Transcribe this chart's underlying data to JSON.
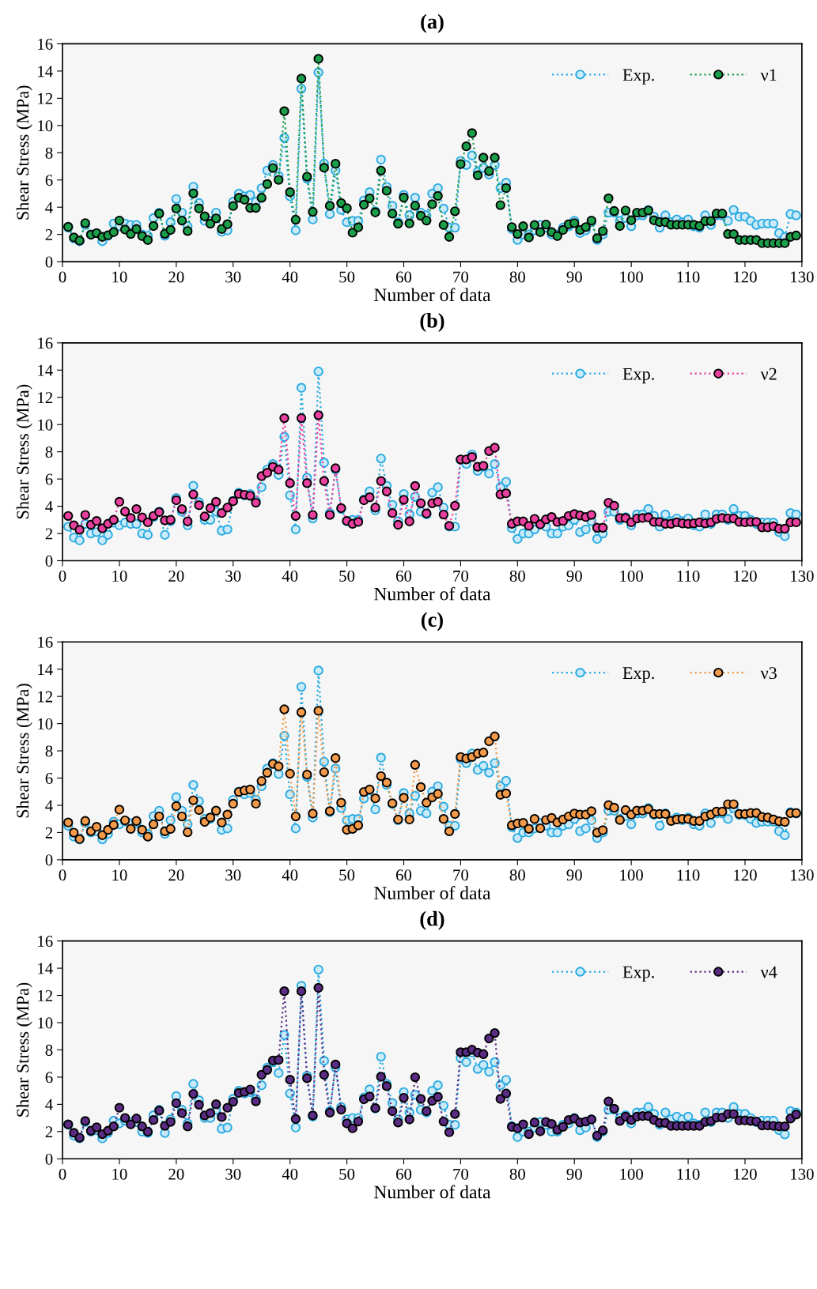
{
  "chart_data": [
    {
      "type": "line",
      "title": "(a)",
      "xlabel": "Number of data",
      "ylabel": "Shear Stress (MPa)",
      "xlim": [
        0,
        130
      ],
      "xticks": [
        0,
        10,
        20,
        30,
        40,
        50,
        60,
        70,
        80,
        90,
        100,
        110,
        120,
        130
      ],
      "ylim": [
        0,
        16
      ],
      "yticks": [
        0,
        2,
        4,
        6,
        8,
        10,
        12,
        14,
        16
      ],
      "grid": false,
      "legend": "top right",
      "marker": "circle",
      "line_style": "dotted",
      "x": [
        1,
        2,
        3,
        4,
        5,
        6,
        7,
        8,
        9,
        10,
        11,
        12,
        13,
        14,
        15,
        16,
        17,
        18,
        19,
        20,
        21,
        22,
        23,
        24,
        25,
        26,
        27,
        28,
        29,
        30,
        31,
        32,
        33,
        34,
        35,
        36,
        37,
        38,
        39,
        40,
        41,
        42,
        43,
        44,
        45,
        46,
        47,
        48,
        49,
        50,
        51,
        52,
        53,
        54,
        55,
        56,
        57,
        58,
        59,
        60,
        61,
        62,
        63,
        64,
        65,
        66,
        67,
        68,
        69,
        70,
        71,
        72,
        73,
        74,
        75,
        76,
        77,
        78,
        79,
        80,
        81,
        82,
        83,
        84,
        85,
        86,
        87,
        88,
        89,
        90,
        91,
        92,
        93,
        94,
        95,
        96,
        97,
        98,
        99,
        100,
        101,
        102,
        103,
        104,
        105,
        106,
        107,
        108,
        109,
        110,
        111,
        112,
        113,
        114,
        115,
        116,
        117,
        118,
        119,
        120,
        121,
        122,
        123,
        124,
        125,
        126,
        127,
        128,
        129
      ],
      "series": [
        {
          "name": "Exp.",
          "color": "#29abe2",
          "values": [
            2.5,
            1.7,
            1.5,
            2.7,
            2.0,
            2.1,
            1.5,
            1.9,
            2.8,
            2.6,
            2.8,
            2.7,
            2.7,
            2.0,
            1.9,
            3.2,
            3.6,
            1.9,
            2.9,
            4.6,
            3.6,
            2.6,
            5.5,
            4.3,
            3.0,
            3.0,
            3.6,
            2.2,
            2.3,
            4.4,
            5.0,
            4.8,
            4.9,
            4.4,
            5.4,
            6.7,
            7.1,
            6.3,
            9.1,
            4.8,
            2.3,
            12.7,
            6.1,
            3.1,
            13.9,
            7.2,
            3.5,
            6.7,
            3.8,
            2.9,
            3.0,
            3.0,
            4.5,
            5.1,
            3.7,
            7.5,
            5.5,
            4.1,
            2.9,
            4.9,
            3.4,
            4.7,
            3.6,
            3.4,
            5.0,
            5.4,
            3.9,
            2.5,
            2.5,
            7.4,
            7.1,
            7.8,
            6.6,
            6.9,
            6.4,
            7.1,
            5.4,
            5.8,
            2.4,
            1.6,
            2.0,
            2.0,
            2.3,
            2.7,
            2.5,
            2.0,
            2.0,
            2.5,
            2.6,
            3.0,
            2.1,
            2.3,
            2.9,
            1.6,
            2.0,
            3.6,
            3.6,
            3.0,
            3.2,
            2.6,
            3.4,
            3.4,
            3.8,
            3.3,
            2.5,
            3.4,
            2.9,
            3.1,
            2.9,
            3.1,
            2.6,
            2.5,
            3.4,
            2.7,
            3.4,
            3.4,
            3.0,
            3.8,
            3.3,
            3.3,
            3.0,
            2.7,
            2.8,
            2.8,
            2.8,
            2.1,
            1.8,
            3.5,
            3.4
          ]
        },
        {
          "name": "ν1",
          "color": "#1a9e4a",
          "values": [
            2.56,
            1.78,
            1.55,
            2.83,
            1.98,
            2.09,
            1.82,
            1.94,
            2.17,
            3.02,
            2.36,
            2.03,
            2.4,
            1.88,
            1.59,
            2.62,
            3.53,
            2.05,
            2.33,
            3.9,
            3.02,
            2.25,
            5.02,
            3.91,
            3.33,
            2.79,
            3.18,
            2.4,
            2.75,
            4.09,
            4.69,
            4.55,
            3.95,
            3.95,
            4.69,
            5.7,
            6.88,
            6.01,
            11.05,
            5.1,
            3.08,
            13.45,
            6.24,
            3.66,
            14.9,
            6.9,
            4.1,
            7.19,
            4.3,
            3.93,
            2.13,
            2.52,
            4.19,
            4.65,
            3.62,
            6.69,
            5.21,
            3.53,
            2.79,
            4.71,
            2.81,
            4.11,
            3.37,
            3.02,
            4.22,
            4.83,
            2.69,
            1.82,
            3.7,
            7.17,
            8.47,
            9.44,
            6.34,
            7.64,
            6.65,
            7.64,
            4.15,
            5.41,
            2.54,
            2.03,
            2.6,
            1.78,
            2.69,
            2.17,
            2.73,
            2.17,
            1.88,
            2.33,
            2.75,
            2.83,
            2.33,
            2.54,
            3.02,
            1.72,
            2.25,
            4.65,
            3.72,
            2.62,
            3.76,
            3.04,
            3.6,
            3.6,
            3.76,
            3.04,
            2.91,
            2.91,
            2.71,
            2.71,
            2.71,
            2.71,
            2.71,
            2.62,
            2.98,
            2.98,
            3.53,
            3.53,
            2.03,
            2.03,
            1.59,
            1.59,
            1.59,
            1.59,
            1.36,
            1.36,
            1.36,
            1.36,
            1.36,
            1.82,
            1.92
          ]
        }
      ]
    },
    {
      "type": "line",
      "title": "(b)",
      "xlabel": "Number of data",
      "ylabel": "Shear Stress (MPa)",
      "xlim": [
        0,
        130
      ],
      "xticks": [
        0,
        10,
        20,
        30,
        40,
        50,
        60,
        70,
        80,
        90,
        100,
        110,
        120,
        130
      ],
      "ylim": [
        0,
        16
      ],
      "yticks": [
        0,
        2,
        4,
        6,
        8,
        10,
        12,
        14,
        16
      ],
      "grid": false,
      "legend": "top right",
      "marker": "circle",
      "line_style": "dotted",
      "x": [
        1,
        2,
        3,
        4,
        5,
        6,
        7,
        8,
        9,
        10,
        11,
        12,
        13,
        14,
        15,
        16,
        17,
        18,
        19,
        20,
        21,
        22,
        23,
        24,
        25,
        26,
        27,
        28,
        29,
        30,
        31,
        32,
        33,
        34,
        35,
        36,
        37,
        38,
        39,
        40,
        41,
        42,
        43,
        44,
        45,
        46,
        47,
        48,
        49,
        50,
        51,
        52,
        53,
        54,
        55,
        56,
        57,
        58,
        59,
        60,
        61,
        62,
        63,
        64,
        65,
        66,
        67,
        68,
        69,
        70,
        71,
        72,
        73,
        74,
        75,
        76,
        77,
        78,
        79,
        80,
        81,
        82,
        83,
        84,
        85,
        86,
        87,
        88,
        89,
        90,
        91,
        92,
        93,
        94,
        95,
        96,
        97,
        98,
        99,
        100,
        101,
        102,
        103,
        104,
        105,
        106,
        107,
        108,
        109,
        110,
        111,
        112,
        113,
        114,
        115,
        116,
        117,
        118,
        119,
        120,
        121,
        122,
        123,
        124,
        125,
        126,
        127,
        128,
        129
      ],
      "series": [
        {
          "name": "Exp.",
          "color": "#29abe2",
          "values": [
            2.5,
            1.7,
            1.5,
            2.7,
            2.0,
            2.1,
            1.5,
            1.9,
            2.8,
            2.6,
            2.8,
            2.7,
            2.7,
            2.0,
            1.9,
            3.2,
            3.6,
            1.9,
            2.9,
            4.6,
            3.6,
            2.6,
            5.5,
            4.3,
            3.0,
            3.0,
            3.6,
            2.2,
            2.3,
            4.4,
            5.0,
            4.8,
            4.9,
            4.4,
            5.4,
            6.7,
            7.1,
            6.3,
            9.1,
            4.8,
            2.3,
            12.7,
            6.1,
            3.1,
            13.9,
            7.2,
            3.5,
            6.7,
            3.8,
            2.9,
            3.0,
            3.0,
            4.5,
            5.1,
            3.7,
            7.5,
            5.5,
            4.1,
            2.9,
            4.9,
            3.4,
            4.7,
            3.6,
            3.4,
            5.0,
            5.4,
            3.9,
            2.5,
            2.5,
            7.4,
            7.1,
            7.8,
            6.6,
            6.9,
            6.4,
            7.1,
            5.4,
            5.8,
            2.4,
            1.6,
            2.0,
            2.0,
            2.3,
            2.7,
            2.5,
            2.0,
            2.0,
            2.5,
            2.6,
            3.0,
            2.1,
            2.3,
            2.9,
            1.6,
            2.0,
            3.6,
            3.6,
            3.0,
            3.2,
            2.6,
            3.4,
            3.4,
            3.8,
            3.3,
            2.5,
            3.4,
            2.9,
            3.1,
            2.9,
            3.1,
            2.6,
            2.5,
            3.4,
            2.7,
            3.4,
            3.4,
            3.0,
            3.8,
            3.3,
            3.3,
            3.0,
            2.7,
            2.8,
            2.8,
            2.8,
            2.1,
            1.8,
            3.5,
            3.4
          ]
        },
        {
          "name": "ν2",
          "color": "#e8409f",
          "values": [
            3.29,
            2.6,
            2.27,
            3.36,
            2.64,
            2.92,
            2.38,
            2.71,
            3.0,
            4.33,
            3.61,
            3.14,
            3.79,
            3.18,
            2.82,
            3.29,
            3.57,
            2.96,
            3.0,
            4.44,
            3.79,
            2.89,
            4.87,
            4.08,
            3.25,
            3.86,
            4.33,
            3.5,
            3.9,
            4.37,
            4.91,
            4.84,
            4.77,
            4.26,
            6.21,
            6.46,
            6.9,
            6.68,
            10.47,
            5.7,
            3.29,
            10.47,
            5.7,
            3.36,
            10.69,
            5.85,
            3.36,
            6.79,
            3.86,
            2.92,
            2.71,
            2.85,
            4.44,
            4.66,
            3.9,
            5.85,
            5.09,
            3.5,
            2.64,
            4.48,
            2.89,
            5.49,
            4.22,
            3.47,
            4.22,
            4.33,
            3.39,
            2.56,
            4.04,
            7.44,
            7.44,
            7.62,
            6.9,
            6.97,
            8.05,
            8.3,
            4.87,
            4.95,
            2.71,
            2.89,
            2.89,
            2.56,
            3.07,
            2.67,
            3.03,
            3.21,
            2.85,
            2.92,
            3.29,
            3.43,
            3.32,
            3.21,
            3.36,
            2.42,
            2.42,
            4.26,
            4.04,
            3.14,
            3.14,
            2.82,
            3.1,
            3.14,
            3.18,
            2.85,
            2.85,
            2.71,
            2.71,
            2.82,
            2.74,
            2.71,
            2.74,
            2.82,
            2.74,
            2.82,
            3.07,
            3.14,
            3.1,
            3.1,
            2.85,
            2.82,
            2.85,
            2.85,
            2.45,
            2.45,
            2.53,
            2.35,
            2.35,
            2.82,
            2.82
          ]
        }
      ]
    },
    {
      "type": "line",
      "title": "(c)",
      "xlabel": "Number of data",
      "ylabel": "Shear Stress (MPa)",
      "xlim": [
        0,
        130
      ],
      "xticks": [
        0,
        10,
        20,
        30,
        40,
        50,
        60,
        70,
        80,
        90,
        100,
        110,
        120,
        130
      ],
      "ylim": [
        0,
        16
      ],
      "yticks": [
        0,
        2,
        4,
        6,
        8,
        10,
        12,
        14,
        16
      ],
      "grid": false,
      "legend": "top right",
      "marker": "circle",
      "line_style": "dotted",
      "x": [
        1,
        2,
        3,
        4,
        5,
        6,
        7,
        8,
        9,
        10,
        11,
        12,
        13,
        14,
        15,
        16,
        17,
        18,
        19,
        20,
        21,
        22,
        23,
        24,
        25,
        26,
        27,
        28,
        29,
        30,
        31,
        32,
        33,
        34,
        35,
        36,
        37,
        38,
        39,
        40,
        41,
        42,
        43,
        44,
        45,
        46,
        47,
        48,
        49,
        50,
        51,
        52,
        53,
        54,
        55,
        56,
        57,
        58,
        59,
        60,
        61,
        62,
        63,
        64,
        65,
        66,
        67,
        68,
        69,
        70,
        71,
        72,
        73,
        74,
        75,
        76,
        77,
        78,
        79,
        80,
        81,
        82,
        83,
        84,
        85,
        86,
        87,
        88,
        89,
        90,
        91,
        92,
        93,
        94,
        95,
        96,
        97,
        98,
        99,
        100,
        101,
        102,
        103,
        104,
        105,
        106,
        107,
        108,
        109,
        110,
        111,
        112,
        113,
        114,
        115,
        116,
        117,
        118,
        119,
        120,
        121,
        122,
        123,
        124,
        125,
        126,
        127,
        128,
        129
      ],
      "series": [
        {
          "name": "Exp.",
          "color": "#29abe2",
          "values": [
            2.5,
            1.7,
            1.5,
            2.7,
            2.0,
            2.1,
            1.5,
            1.9,
            2.8,
            2.6,
            2.8,
            2.7,
            2.7,
            2.0,
            1.9,
            3.2,
            3.6,
            1.9,
            2.9,
            4.6,
            3.6,
            2.6,
            5.5,
            4.3,
            3.0,
            3.0,
            3.6,
            2.2,
            2.3,
            4.4,
            5.0,
            4.8,
            4.9,
            4.4,
            5.4,
            6.7,
            7.1,
            6.3,
            9.1,
            4.8,
            2.3,
            12.7,
            6.1,
            3.1,
            13.9,
            7.2,
            3.5,
            6.7,
            3.8,
            2.9,
            3.0,
            3.0,
            4.5,
            5.1,
            3.7,
            7.5,
            5.5,
            4.1,
            2.9,
            4.9,
            3.4,
            4.7,
            3.6,
            3.4,
            5.0,
            5.4,
            3.9,
            2.5,
            2.5,
            7.4,
            7.1,
            7.8,
            6.6,
            6.9,
            6.4,
            7.1,
            5.4,
            5.8,
            2.4,
            1.6,
            2.0,
            2.0,
            2.3,
            2.7,
            2.5,
            2.0,
            2.0,
            2.5,
            2.6,
            3.0,
            2.1,
            2.3,
            2.9,
            1.6,
            2.0,
            3.6,
            3.6,
            3.0,
            3.2,
            2.6,
            3.4,
            3.4,
            3.8,
            3.3,
            2.5,
            3.4,
            2.9,
            3.1,
            2.9,
            3.1,
            2.6,
            2.5,
            3.4,
            2.7,
            3.4,
            3.4,
            3.0,
            3.8,
            3.3,
            3.3,
            3.0,
            2.7,
            2.8,
            2.8,
            2.8,
            2.1,
            1.8,
            3.5,
            3.4
          ]
        },
        {
          "name": "ν3",
          "color": "#f39a4a",
          "values": [
            2.74,
            1.99,
            1.52,
            2.85,
            2.09,
            2.42,
            1.81,
            2.2,
            2.56,
            3.68,
            2.89,
            2.27,
            2.85,
            2.2,
            1.7,
            2.6,
            3.18,
            2.09,
            2.27,
            3.94,
            3.18,
            2.02,
            4.37,
            3.65,
            2.78,
            3.1,
            3.61,
            2.74,
            3.32,
            4.12,
            4.98,
            5.09,
            5.16,
            4.12,
            5.78,
            6.39,
            7.04,
            6.86,
            11.05,
            6.32,
            3.18,
            10.83,
            6.25,
            3.39,
            10.94,
            6.43,
            3.57,
            7.47,
            4.19,
            2.2,
            2.27,
            2.53,
            4.98,
            5.16,
            4.51,
            6.14,
            5.67,
            4.15,
            2.96,
            4.55,
            2.96,
            6.97,
            5.34,
            4.19,
            4.58,
            4.84,
            3.0,
            2.09,
            3.36,
            7.55,
            7.44,
            7.55,
            7.8,
            7.87,
            8.7,
            9.06,
            4.77,
            4.87,
            2.53,
            2.67,
            2.71,
            2.27,
            3.0,
            2.31,
            2.92,
            3.07,
            2.74,
            2.96,
            3.18,
            3.39,
            3.32,
            3.32,
            3.57,
            1.99,
            2.17,
            4.01,
            3.83,
            2.92,
            3.65,
            3.32,
            3.61,
            3.61,
            3.72,
            3.36,
            3.36,
            3.36,
            2.85,
            2.96,
            3.0,
            3.0,
            2.85,
            2.85,
            3.18,
            3.32,
            3.54,
            3.54,
            4.08,
            4.08,
            3.36,
            3.36,
            3.43,
            3.43,
            3.14,
            3.1,
            2.96,
            2.82,
            2.78,
            3.43,
            3.43
          ]
        }
      ]
    },
    {
      "type": "line",
      "title": "(d)",
      "xlabel": "Number of data",
      "ylabel": "Shear Stress (MPa)",
      "xlim": [
        0,
        130
      ],
      "xticks": [
        0,
        10,
        20,
        30,
        40,
        50,
        60,
        70,
        80,
        90,
        100,
        110,
        120,
        130
      ],
      "ylim": [
        0,
        16
      ],
      "yticks": [
        0,
        2,
        4,
        6,
        8,
        10,
        12,
        14,
        16
      ],
      "grid": false,
      "legend": "top right",
      "marker": "circle",
      "line_style": "dotted",
      "x": [
        1,
        2,
        3,
        4,
        5,
        6,
        7,
        8,
        9,
        10,
        11,
        12,
        13,
        14,
        15,
        16,
        17,
        18,
        19,
        20,
        21,
        22,
        23,
        24,
        25,
        26,
        27,
        28,
        29,
        30,
        31,
        32,
        33,
        34,
        35,
        36,
        37,
        38,
        39,
        40,
        41,
        42,
        43,
        44,
        45,
        46,
        47,
        48,
        49,
        50,
        51,
        52,
        53,
        54,
        55,
        56,
        57,
        58,
        59,
        60,
        61,
        62,
        63,
        64,
        65,
        66,
        67,
        68,
        69,
        70,
        71,
        72,
        73,
        74,
        75,
        76,
        77,
        78,
        79,
        80,
        81,
        82,
        83,
        84,
        85,
        86,
        87,
        88,
        89,
        90,
        91,
        92,
        93,
        94,
        95,
        96,
        97,
        98,
        99,
        100,
        101,
        102,
        103,
        104,
        105,
        106,
        107,
        108,
        109,
        110,
        111,
        112,
        113,
        114,
        115,
        116,
        117,
        118,
        119,
        120,
        121,
        122,
        123,
        124,
        125,
        126,
        127,
        128,
        129
      ],
      "series": [
        {
          "name": "Exp.",
          "color": "#29abe2",
          "values": [
            2.5,
            1.7,
            1.5,
            2.7,
            2.0,
            2.1,
            1.5,
            1.9,
            2.8,
            2.6,
            2.8,
            2.7,
            2.7,
            2.0,
            1.9,
            3.2,
            3.6,
            1.9,
            2.9,
            4.6,
            3.6,
            2.6,
            5.5,
            4.3,
            3.0,
            3.0,
            3.6,
            2.2,
            2.3,
            4.4,
            5.0,
            4.8,
            4.9,
            4.4,
            5.4,
            6.7,
            7.1,
            6.3,
            9.1,
            4.8,
            2.3,
            12.7,
            6.1,
            3.1,
            13.9,
            7.2,
            3.5,
            6.7,
            3.8,
            2.9,
            3.0,
            3.0,
            4.5,
            5.1,
            3.7,
            7.5,
            5.5,
            4.1,
            2.9,
            4.9,
            3.4,
            4.7,
            3.6,
            3.4,
            5.0,
            5.4,
            3.9,
            2.5,
            2.5,
            7.4,
            7.1,
            7.8,
            6.6,
            6.9,
            6.4,
            7.1,
            5.4,
            5.8,
            2.4,
            1.6,
            2.0,
            2.0,
            2.3,
            2.7,
            2.5,
            2.0,
            2.0,
            2.5,
            2.6,
            3.0,
            2.1,
            2.3,
            2.9,
            1.6,
            2.0,
            3.6,
            3.6,
            3.0,
            3.2,
            2.6,
            3.4,
            3.4,
            3.8,
            3.3,
            2.5,
            3.4,
            2.9,
            3.1,
            2.9,
            3.1,
            2.6,
            2.5,
            3.4,
            2.7,
            3.4,
            3.4,
            3.0,
            3.8,
            3.3,
            3.3,
            3.0,
            2.7,
            2.8,
            2.8,
            2.8,
            2.1,
            1.8,
            3.5,
            3.4
          ]
        },
        {
          "name": "ν4",
          "color": "#5b2c83",
          "values": [
            2.53,
            1.91,
            1.55,
            2.78,
            2.06,
            2.31,
            1.81,
            2.06,
            2.38,
            3.75,
            3.0,
            2.53,
            2.96,
            2.38,
            1.99,
            2.85,
            3.54,
            2.42,
            2.71,
            4.08,
            3.36,
            2.38,
            4.77,
            3.97,
            3.18,
            3.36,
            4.01,
            3.07,
            3.75,
            4.19,
            4.84,
            4.91,
            5.09,
            4.22,
            6.17,
            6.53,
            7.22,
            7.26,
            12.31,
            5.81,
            2.92,
            12.31,
            5.92,
            3.18,
            12.56,
            6.17,
            3.39,
            6.93,
            3.61,
            2.6,
            2.24,
            2.74,
            4.37,
            4.58,
            3.72,
            6.03,
            5.34,
            3.5,
            2.67,
            4.48,
            2.89,
            5.99,
            4.4,
            3.5,
            4.26,
            4.55,
            2.74,
            1.95,
            3.29,
            7.83,
            7.83,
            8.01,
            7.8,
            7.69,
            8.84,
            9.24,
            4.4,
            4.8,
            2.35,
            2.24,
            2.53,
            1.81,
            2.67,
            2.02,
            2.71,
            2.56,
            2.13,
            2.35,
            2.85,
            2.96,
            2.67,
            2.74,
            2.89,
            1.7,
            2.09,
            4.22,
            3.68,
            2.78,
            3.1,
            2.85,
            3.1,
            3.14,
            3.14,
            2.85,
            2.64,
            2.64,
            2.42,
            2.42,
            2.42,
            2.42,
            2.42,
            2.42,
            2.71,
            2.78,
            3.03,
            3.03,
            3.29,
            3.29,
            2.82,
            2.82,
            2.78,
            2.74,
            2.45,
            2.45,
            2.42,
            2.38,
            2.38,
            2.96,
            3.25
          ]
        }
      ]
    }
  ]
}
